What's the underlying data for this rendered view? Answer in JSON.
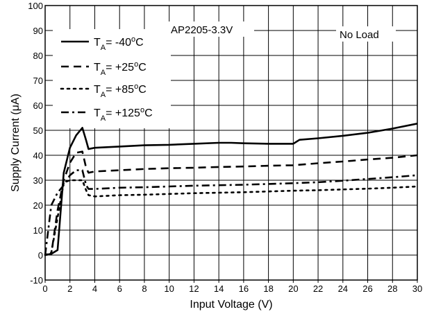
{
  "chart_data": {
    "type": "line",
    "title": "",
    "xlabel": "Input Voltage (V)",
    "ylabel_prefix": "Supply Current (",
    "ylabel_mu": "μ",
    "ylabel_suffix": "A)",
    "xlim": [
      0,
      30
    ],
    "ylim": [
      -10,
      100
    ],
    "x_ticks": [
      0,
      2,
      4,
      6,
      8,
      10,
      12,
      14,
      16,
      18,
      20,
      22,
      24,
      26,
      28,
      30
    ],
    "y_ticks": [
      -10,
      0,
      10,
      20,
      30,
      40,
      50,
      60,
      70,
      80,
      90,
      100
    ],
    "grid": true,
    "legend_position": "top-left",
    "annotations": [
      "AP2205-3.3V",
      "No Load"
    ],
    "series": [
      {
        "name_base": "T",
        "name_sub": "A",
        "name_value": "= -40",
        "name_deg": "o",
        "name_unit": "C",
        "dash": "solid",
        "x": [
          0,
          0.5,
          1.0,
          1.5,
          2.0,
          2.5,
          3.0,
          3.3,
          3.5,
          4,
          6,
          8,
          10,
          12,
          14,
          15,
          16,
          18,
          19,
          20,
          20.5,
          22,
          24,
          26,
          28,
          30
        ],
        "y": [
          0,
          0.5,
          2,
          33,
          43,
          48,
          51,
          46,
          42.5,
          43,
          43.5,
          44,
          44.2,
          44.6,
          45,
          45,
          44.8,
          44.6,
          44.6,
          44.6,
          46.2,
          46.8,
          47.8,
          49,
          50.7,
          52.7
        ]
      },
      {
        "name_base": "T",
        "name_sub": "A",
        "name_value": "= +25",
        "name_deg": "o",
        "name_unit": "C",
        "dash": "dash",
        "x": [
          0,
          0.5,
          1.0,
          1.5,
          2.0,
          2.5,
          3.0,
          3.3,
          3.5,
          4,
          6,
          8,
          10,
          12,
          14,
          16,
          18,
          20,
          22,
          24,
          26,
          28,
          30
        ],
        "y": [
          0,
          0.5,
          18,
          30,
          37,
          41,
          41.5,
          35,
          33,
          33.5,
          34,
          34.5,
          34.8,
          35,
          35.3,
          35.5,
          35.8,
          36,
          36.8,
          37.5,
          38.3,
          39,
          40
        ]
      },
      {
        "name_base": "T",
        "name_sub": "A",
        "name_value": "= +85",
        "name_deg": "o",
        "name_unit": "C",
        "dash": "dot",
        "x": [
          0,
          0.5,
          1.0,
          1.5,
          2.0,
          2.5,
          3.0,
          3.3,
          3.5,
          4,
          6,
          8,
          10,
          12,
          14,
          16,
          18,
          20,
          22,
          24,
          26,
          28,
          30
        ],
        "y": [
          0,
          1,
          15,
          29,
          30,
          30,
          30,
          26,
          24,
          23.5,
          24,
          24.2,
          24.5,
          24.8,
          25,
          25.2,
          25.5,
          25.8,
          26,
          26.3,
          26.6,
          27,
          27.5
        ]
      },
      {
        "name_base": "T",
        "name_sub": "A",
        "name_value": "= +125",
        "name_deg": "o",
        "name_unit": "C",
        "dash": "dashdot",
        "x": [
          0,
          0.5,
          1.0,
          1.5,
          2.0,
          2.5,
          3.0,
          3.3,
          3.5,
          4,
          6,
          8,
          10,
          12,
          14,
          16,
          18,
          20,
          22,
          24,
          26,
          28,
          30
        ],
        "y": [
          0,
          20,
          25,
          28,
          32,
          34,
          34,
          28,
          26.5,
          26.5,
          27,
          27.2,
          27.5,
          27.8,
          28,
          28.2,
          28.5,
          28.8,
          29.2,
          29.8,
          30.5,
          31.2,
          32
        ]
      }
    ]
  }
}
